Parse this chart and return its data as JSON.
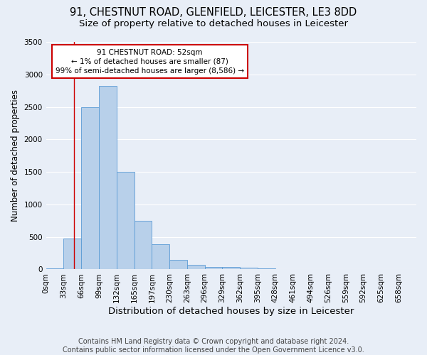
{
  "title_line1": "91, CHESTNUT ROAD, GLENFIELD, LEICESTER, LE3 8DD",
  "title_line2": "Size of property relative to detached houses in Leicester",
  "xlabel": "Distribution of detached houses by size in Leicester",
  "ylabel": "Number of detached properties",
  "footer_line1": "Contains HM Land Registry data © Crown copyright and database right 2024.",
  "footer_line2": "Contains public sector information licensed under the Open Government Licence v3.0.",
  "bar_labels": [
    "0sqm",
    "33sqm",
    "66sqm",
    "99sqm",
    "132sqm",
    "165sqm",
    "197sqm",
    "230sqm",
    "263sqm",
    "296sqm",
    "329sqm",
    "362sqm",
    "395sqm",
    "428sqm",
    "461sqm",
    "494sqm",
    "526sqm",
    "559sqm",
    "592sqm",
    "625sqm",
    "658sqm"
  ],
  "bar_values": [
    20,
    480,
    2500,
    2820,
    1500,
    750,
    390,
    145,
    75,
    40,
    35,
    25,
    18,
    10,
    0,
    0,
    0,
    0,
    0,
    0,
    0
  ],
  "bar_color": "#b8d0ea",
  "bar_edge_color": "#5b9bd5",
  "annotation_box_text": "91 CHESTNUT ROAD: 52sqm\n← 1% of detached houses are smaller (87)\n99% of semi-detached houses are larger (8,586) →",
  "annotation_box_color": "#ffffff",
  "annotation_box_edge_color": "#cc0000",
  "vline_x": 52,
  "vline_color": "#cc0000",
  "ylim": [
    0,
    3500
  ],
  "yticks": [
    0,
    500,
    1000,
    1500,
    2000,
    2500,
    3000,
    3500
  ],
  "bin_width": 33,
  "background_color": "#e8eef7",
  "grid_color": "#ffffff",
  "title_fontsize": 10.5,
  "subtitle_fontsize": 9.5,
  "xlabel_fontsize": 9.5,
  "ylabel_fontsize": 8.5,
  "tick_fontsize": 7.5,
  "footer_fontsize": 7.0,
  "annot_fontsize": 7.5
}
